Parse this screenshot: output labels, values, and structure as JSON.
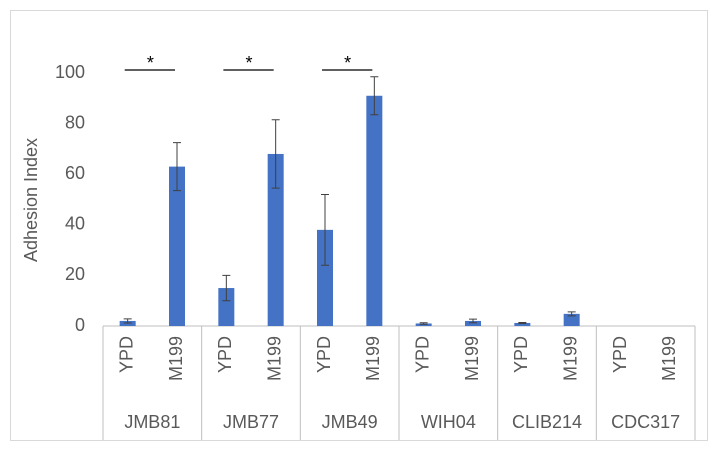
{
  "chart_data": {
    "type": "bar",
    "y_label": "Adhesion Index",
    "groups": [
      {
        "name": "JMB81",
        "categories": [
          "YPD",
          "M199"
        ]
      },
      {
        "name": "JMB77",
        "categories": [
          "YPD",
          "M199"
        ]
      },
      {
        "name": "JMB49",
        "categories": [
          "YPD",
          "M199"
        ]
      },
      {
        "name": "WIH04",
        "categories": [
          "YPD",
          "M199"
        ]
      },
      {
        "name": "CLIB214",
        "categories": [
          "YPD",
          "M199"
        ]
      },
      {
        "name": "CDC317",
        "categories": [
          "YPD",
          "M199"
        ]
      }
    ],
    "values": [
      2,
      63,
      15,
      68,
      38,
      91,
      1,
      2,
      1.2,
      4.8,
      0,
      0
    ],
    "errors": [
      0.8,
      9.5,
      5,
      13.5,
      14,
      7.5,
      0.3,
      0.7,
      0.2,
      0.8,
      null,
      null
    ],
    "color": "#4472c4",
    "ylim": [
      0,
      100
    ],
    "yticks": [
      0,
      20,
      40,
      60,
      80,
      100
    ],
    "annotations": [
      {
        "text": "*",
        "group": 0
      },
      {
        "text": "*",
        "group": 1
      },
      {
        "text": "*",
        "group": 2
      }
    ]
  }
}
